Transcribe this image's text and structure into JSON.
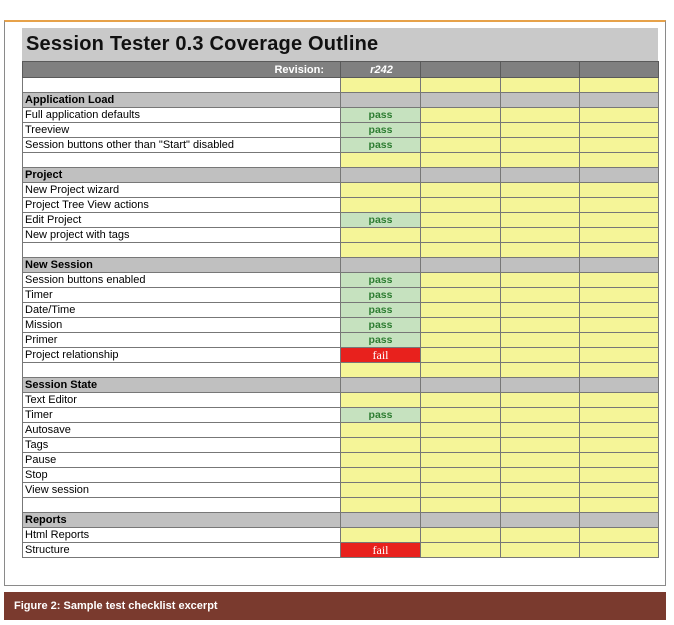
{
  "title": "Session Tester 0.3 Coverage Outline",
  "revision_label": "Revision:",
  "revision_value": "r242",
  "caption": "Figure 2: Sample test checklist excerpt",
  "colors": {
    "pass_bg": "#c6e2bf",
    "pass_text": "#2e7d32",
    "fail_bg": "#e8211d",
    "cell_yellow": "#f5f598",
    "section_bg": "#c0c0c0",
    "caption_bg": "#7a3a2e"
  },
  "rows": [
    {
      "type": "blank"
    },
    {
      "type": "section",
      "label": "Application Load"
    },
    {
      "type": "item",
      "label": "Full application defaults",
      "status": "pass"
    },
    {
      "type": "item",
      "label": "Treeview",
      "status": "pass"
    },
    {
      "type": "item",
      "label": "Session buttons other than \"Start\" disabled",
      "status": "pass"
    },
    {
      "type": "blank"
    },
    {
      "type": "section",
      "label": "Project"
    },
    {
      "type": "item",
      "label": "New Project wizard",
      "status": ""
    },
    {
      "type": "item",
      "label": "Project Tree View actions",
      "status": ""
    },
    {
      "type": "item",
      "label": "Edit Project",
      "status": "pass"
    },
    {
      "type": "item",
      "label": "New project with tags",
      "status": ""
    },
    {
      "type": "blank"
    },
    {
      "type": "section",
      "label": "New Session"
    },
    {
      "type": "item",
      "label": "Session buttons enabled",
      "status": "pass"
    },
    {
      "type": "item",
      "label": "Timer",
      "status": "pass"
    },
    {
      "type": "item",
      "label": "Date/Time",
      "status": "pass"
    },
    {
      "type": "item",
      "label": "Mission",
      "status": "pass"
    },
    {
      "type": "item",
      "label": "Primer",
      "status": "pass"
    },
    {
      "type": "item",
      "label": "Project relationship",
      "status": "fail"
    },
    {
      "type": "blank"
    },
    {
      "type": "section",
      "label": "Session State"
    },
    {
      "type": "item",
      "label": "Text Editor",
      "status": ""
    },
    {
      "type": "item",
      "label": "Timer",
      "status": "pass"
    },
    {
      "type": "item",
      "label": "Autosave",
      "status": ""
    },
    {
      "type": "item",
      "label": "Tags",
      "status": ""
    },
    {
      "type": "item",
      "label": "Pause",
      "status": ""
    },
    {
      "type": "item",
      "label": "Stop",
      "status": ""
    },
    {
      "type": "item",
      "label": "View session",
      "status": ""
    },
    {
      "type": "blank"
    },
    {
      "type": "section",
      "label": "Reports"
    },
    {
      "type": "item",
      "label": "Html Reports",
      "status": ""
    },
    {
      "type": "item",
      "label": "Structure",
      "status": "fail"
    }
  ]
}
